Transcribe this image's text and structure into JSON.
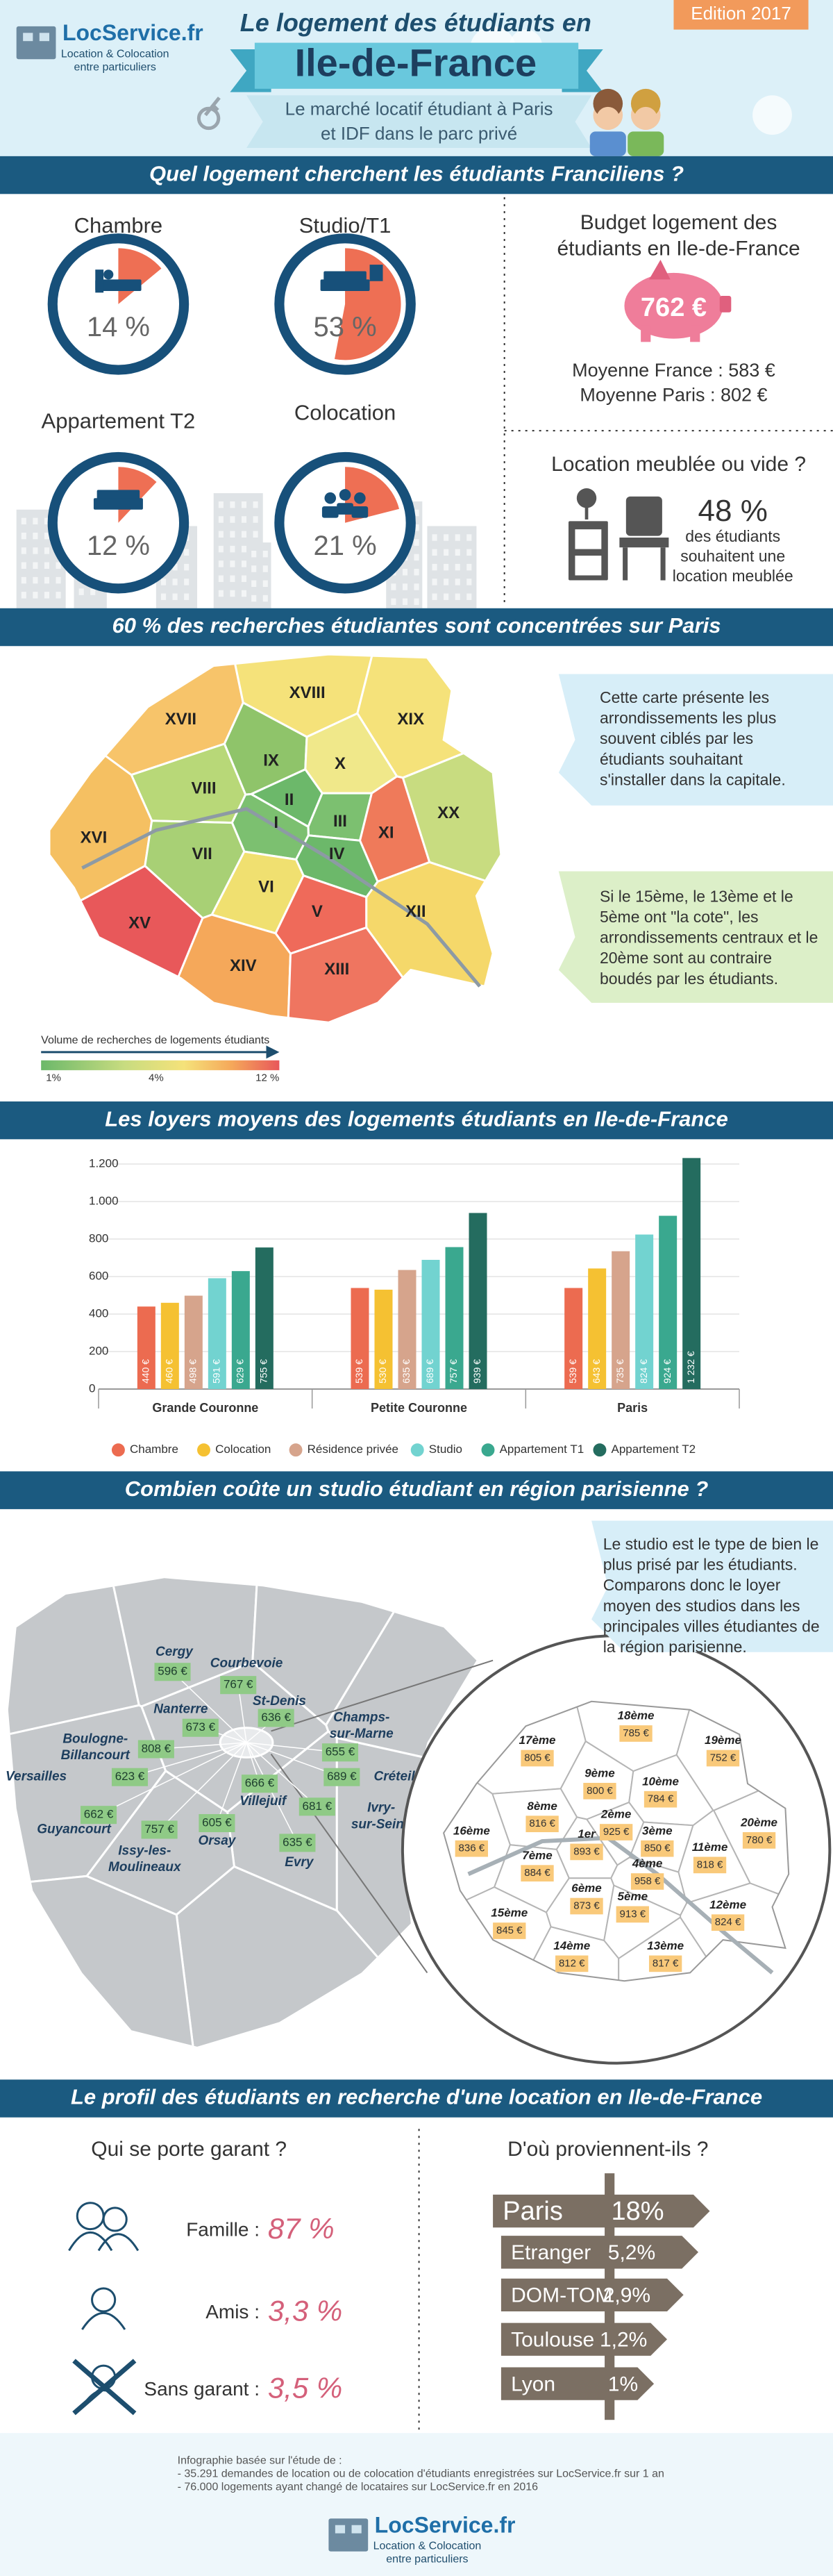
{
  "header": {
    "logo": {
      "name": "LocService.fr",
      "tagline": [
        "Location & Colocation",
        "entre particuliers"
      ]
    },
    "title_line1": "Le logement des étudiants en",
    "title_line2": "Ile-de-France",
    "subtitle": [
      "Le marché locatif étudiant à Paris",
      "et IDF dans le parc privé"
    ],
    "edition": "Edition 2017"
  },
  "section1": {
    "title": "Quel logement cherchent les étudiants Franciliens ?",
    "types": [
      {
        "name": "Chambre",
        "value": 14,
        "label": "14 %"
      },
      {
        "name": "Studio/T1",
        "value": 53,
        "label": "53 %"
      },
      {
        "name": "Appartement T2",
        "value": 12,
        "label": "12 %"
      },
      {
        "name": "Colocation",
        "value": 21,
        "label": "21 %"
      }
    ],
    "budget": {
      "title": [
        "Budget logement des",
        "étudiants en Ile-de-France"
      ],
      "amount": "762 €",
      "france": "Moyenne France : 583 €",
      "paris": "Moyenne Paris : 802 €"
    },
    "furnished": {
      "title": "Location meublée ou vide ?",
      "value": "48 %",
      "text": [
        "des étudiants",
        "souhaitent une",
        "location meublée"
      ]
    }
  },
  "section2": {
    "title": "60 % des recherches étudiantes sont concentrées sur Paris",
    "arrondissements": [
      "XVII",
      "XVIII",
      "XIX",
      "IX",
      "X",
      "VIII",
      "II",
      "III",
      "I",
      "XI",
      "XX",
      "XVI",
      "VII",
      "IV",
      "VI",
      "V",
      "XII",
      "XV",
      "XIV",
      "XIII"
    ],
    "legend": {
      "title": "Volume de recherches de logements étudiants",
      "labels": [
        "1%",
        "4%",
        "12 %"
      ]
    },
    "note1": [
      "Cette carte présente les",
      "arrondissements les plus",
      "souvent ciblés par les",
      "étudiants souhaitant",
      "s'installer dans la capitale."
    ],
    "note2": [
      "Si le 15ème, le 13ème et le",
      "5ème ont \"la cote\", les",
      "arrondissements centraux et le",
      "20ème sont au contraire",
      "boudés par les étudiants."
    ]
  },
  "rent_chart": {
    "type": "bar",
    "title": "Les loyers moyens des logements étudiants en Ile-de-France",
    "categories": [
      "Grande Couronne",
      "Petite Couronne",
      "Paris"
    ],
    "ylim": [
      0,
      1200
    ],
    "yticks": [
      0,
      200,
      400,
      600,
      800,
      {
        "value": 1000,
        "label": "1.000"
      },
      {
        "value": 1200,
        "label": "1.200"
      }
    ],
    "grid": true,
    "series": [
      {
        "name": "Chambre",
        "color": "#ec6b50",
        "values": [
          440,
          539,
          539
        ],
        "value_labels": [
          "440 €",
          "539 €",
          "539 €"
        ]
      },
      {
        "name": "Colocation",
        "color": "#f5c132",
        "values": [
          460,
          530,
          643
        ],
        "value_labels": [
          "460 €",
          "530 €",
          "643 €"
        ]
      },
      {
        "name": "Résidence privée",
        "color": "#d6a48c",
        "values": [
          498,
          635,
          735
        ],
        "value_labels": [
          "498 €",
          "635 €",
          "735 €"
        ]
      },
      {
        "name": "Studio",
        "color": "#72d3d0",
        "values": [
          591,
          689,
          824
        ],
        "value_labels": [
          "591 €",
          "689 €",
          "824 €"
        ]
      },
      {
        "name": "Appartement T1",
        "color": "#3aa88f",
        "values": [
          629,
          757,
          924
        ],
        "value_labels": [
          "629 €",
          "757 €",
          "924 €"
        ]
      },
      {
        "name": "Appartement T2",
        "color": "#246c5f",
        "values": [
          755,
          939,
          1232
        ],
        "value_labels": [
          "755 €",
          "939 €",
          "1 232 €"
        ]
      }
    ]
  },
  "section4": {
    "title": "Combien coûte un studio étudiant en région parisienne ?",
    "note": [
      "Le studio est le type de bien le",
      "plus prisé par les étudiants.",
      "Comparons donc le loyer",
      "moyen des studios dans les",
      "principales villes étudiantes de",
      "la région parisienne."
    ],
    "cities": [
      {
        "name": [
          "Cergy"
        ],
        "price": "596 €"
      },
      {
        "name": [
          "Courbevoie"
        ],
        "price": "767 €"
      },
      {
        "name": [
          "Nanterre"
        ],
        "price": "673 €"
      },
      {
        "name": [
          "St-Denis"
        ],
        "price": "636 €"
      },
      {
        "name": [
          "Champs-",
          "sur-Marne"
        ],
        "price": "655 €"
      },
      {
        "name": [
          "Boulogne-",
          "Billancourt"
        ],
        "price": "808 €"
      },
      {
        "name": [
          "Versailles"
        ],
        "price": "623 €"
      },
      {
        "name": [
          "Créteil"
        ],
        "price": "689 €"
      },
      {
        "name": [
          "Villejuif"
        ],
        "price": "666 €"
      },
      {
        "name": [
          "Ivry-",
          "sur-Seine"
        ],
        "price": "681 €"
      },
      {
        "name": [
          "Guyancourt"
        ],
        "price": "662 €"
      },
      {
        "name": [
          "Issy-les-",
          "Moulineaux"
        ],
        "price": "757 €"
      },
      {
        "name": [
          "Orsay"
        ],
        "price": "605 €"
      },
      {
        "name": [
          "Evry"
        ],
        "price": "635 €"
      }
    ],
    "paris": [
      {
        "name": "18ème",
        "price": "785 €"
      },
      {
        "name": "17ème",
        "price": "805 €"
      },
      {
        "name": "19ème",
        "price": "752 €"
      },
      {
        "name": "9ème",
        "price": "800 €"
      },
      {
        "name": "10ème",
        "price": "784 €"
      },
      {
        "name": "8ème",
        "price": "816 €"
      },
      {
        "name": "2ème",
        "price": "925 €"
      },
      {
        "name": "3ème",
        "price": "850 €"
      },
      {
        "name": "20ème",
        "price": "780 €"
      },
      {
        "name": "16ème",
        "price": "836 €"
      },
      {
        "name": "1er",
        "price": "893 €"
      },
      {
        "name": "11ème",
        "price": "818 €"
      },
      {
        "name": "7ème",
        "price": "884 €"
      },
      {
        "name": "4ème",
        "price": "958 €"
      },
      {
        "name": "6ème",
        "price": "873 €"
      },
      {
        "name": "5ème",
        "price": "913 €"
      },
      {
        "name": "15ème",
        "price": "845 €"
      },
      {
        "name": "12ème",
        "price": "824 €"
      },
      {
        "name": "14ème",
        "price": "812 €"
      },
      {
        "name": "13ème",
        "price": "817 €"
      }
    ]
  },
  "section5": {
    "title": "Le profil des étudiants en recherche d'une location en Ile-de-France",
    "guarantor": {
      "title": "Qui se porte garant ?",
      "items": [
        {
          "label": "Famille :",
          "value": "87 %"
        },
        {
          "label": "Amis :",
          "value": "3,3 %"
        },
        {
          "label": "Sans garant :",
          "value": "3,5 %"
        }
      ]
    },
    "origin": {
      "title": "D'où proviennent-ils ?",
      "items": [
        {
          "name": "Paris",
          "value": "18%"
        },
        {
          "name": "Etranger",
          "value": "5,2%"
        },
        {
          "name": "DOM-TOM",
          "value": "2,9%"
        },
        {
          "name": "Toulouse",
          "value": "1,2%"
        },
        {
          "name": "Lyon",
          "value": "1%"
        }
      ]
    }
  },
  "footer": {
    "lines": [
      "Infographie basée sur l'étude de :",
      "- 35.291 demandes de location ou de colocation d'étudiants enregistrées sur LocService.fr sur 1 an",
      "- 76.000 logements ayant changé de locataires sur LocService.fr en 2016"
    ],
    "logo": {
      "name": "LocService.fr",
      "tagline": [
        "Location & Colocation",
        "entre particuliers"
      ]
    }
  }
}
